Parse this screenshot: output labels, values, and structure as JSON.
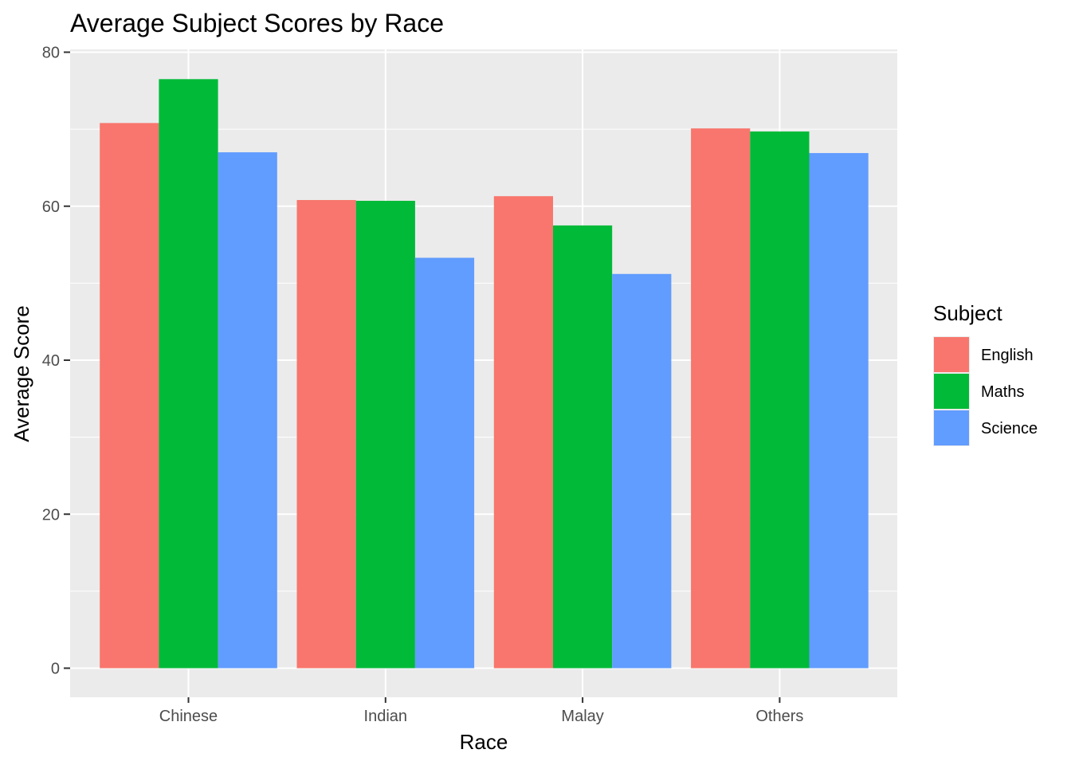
{
  "chart_data": {
    "type": "bar",
    "title": "Average Subject Scores by Race",
    "xlabel": "Race",
    "ylabel": "Average Score",
    "categories": [
      "Chinese",
      "Indian",
      "Malay",
      "Others"
    ],
    "series": [
      {
        "name": "English",
        "color": "#F8766D",
        "values": [
          70.8,
          60.8,
          61.3,
          70.1
        ]
      },
      {
        "name": "Maths",
        "color": "#00BA38",
        "values": [
          76.5,
          60.7,
          57.5,
          69.7
        ]
      },
      {
        "name": "Science",
        "color": "#619CFF",
        "values": [
          67.0,
          53.3,
          51.2,
          66.9
        ]
      }
    ],
    "ylim": [
      0,
      80
    ],
    "yticks": [
      0,
      20,
      40,
      60,
      80
    ],
    "grid": true,
    "legend": {
      "title": "Subject",
      "position": "right"
    },
    "panel_background": "#EBEBEB"
  }
}
